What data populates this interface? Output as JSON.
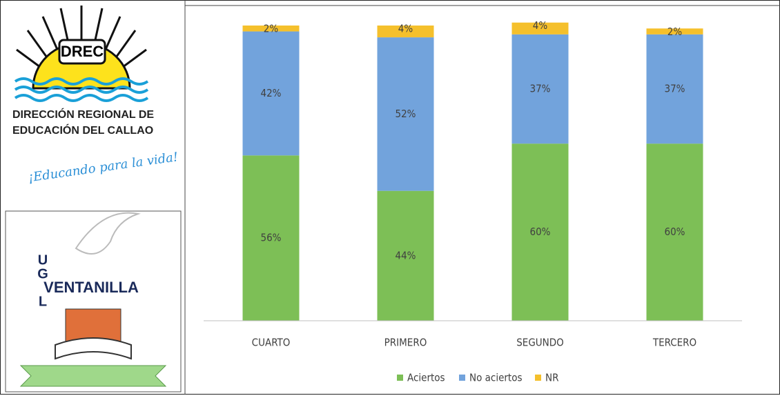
{
  "chart_data": {
    "type": "bar",
    "stacked": true,
    "categories": [
      "CUARTO",
      "PRIMERO",
      "SEGUNDO",
      "TERCERO"
    ],
    "series": [
      {
        "name": "Aciertos",
        "color": "#7dbf56",
        "values": [
          56,
          44,
          60,
          60
        ],
        "value_labels": [
          "56%",
          "44%",
          "60%",
          "60%"
        ]
      },
      {
        "name": "No aciertos",
        "color": "#72a3dc",
        "values": [
          42,
          52,
          37,
          37
        ],
        "value_labels": [
          "42%",
          "52%",
          "37%",
          "37%"
        ]
      },
      {
        "name": "NR",
        "color": "#f5c02c",
        "values": [
          2,
          4,
          4,
          2
        ],
        "value_labels": [
          "2%",
          "4%",
          "4%",
          "2%"
        ]
      }
    ],
    "ylim": [
      0,
      100
    ],
    "legend": "bottom"
  },
  "logos": {
    "drec": "DREC",
    "line1": "DIRECCIÓN REGIONAL DE",
    "line2": "EDUCACIÓN DEL CALLAO",
    "slogan": "¡Educando para la vida!",
    "ugel": [
      "U",
      "G",
      "VENTANILLA",
      "L"
    ]
  }
}
